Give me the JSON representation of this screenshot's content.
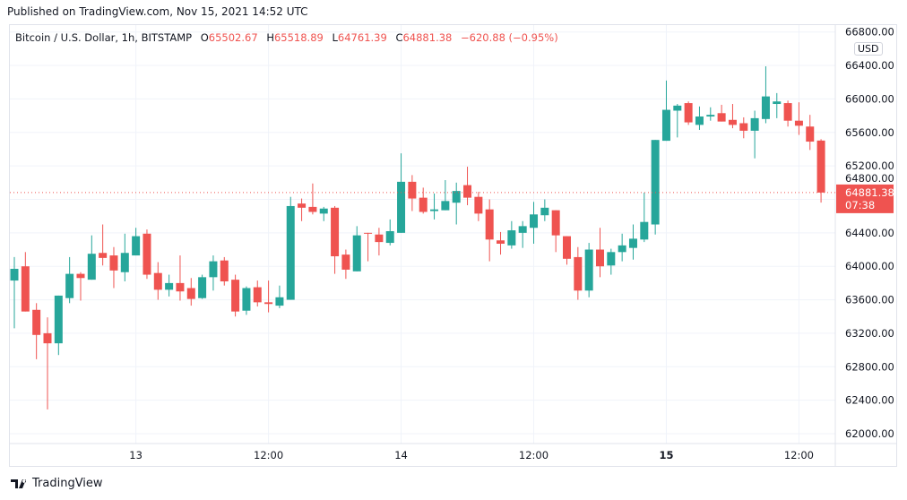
{
  "header": {
    "published": "Published on TradingView.com, Nov 15, 2021 14:52 UTC"
  },
  "legend": {
    "symbol": "Bitcoin / U.S. Dollar, 1h, BITSTAMP",
    "o_label": "O",
    "o": "65502.67",
    "h_label": "H",
    "h": "65518.89",
    "l_label": "L",
    "l": "64761.39",
    "c_label": "C",
    "c": "64881.38",
    "change": "−620.88 (−0.95%)"
  },
  "currency_badge": "USD",
  "last_price": {
    "price": "64881.38",
    "countdown": "07:38",
    "value": 64881.38
  },
  "footer": {
    "logo_text": "TradingView"
  },
  "colors": {
    "up": "#26a69a",
    "down": "#ef5350",
    "grid": "#f0f3fa",
    "text": "#131722"
  },
  "chart_data": {
    "type": "candlestick",
    "title": "Bitcoin / U.S. Dollar, 1h, BITSTAMP",
    "ylim": [
      61900,
      66850
    ],
    "grid": true,
    "y_ticks": [
      "62000.00",
      "62400.00",
      "62800.00",
      "63200.00",
      "63600.00",
      "64000.00",
      "64400.00",
      "64800.00",
      "65200.00",
      "65600.00",
      "66000.00",
      "66400.00",
      "66800.00"
    ],
    "x_ticks": [
      {
        "label": "13",
        "at": "11-13 00:00",
        "bold": false
      },
      {
        "label": "12:00",
        "at": "11-13 12:00",
        "bold": false
      },
      {
        "label": "14",
        "at": "11-14 00:00",
        "bold": false
      },
      {
        "label": "12:00",
        "at": "11-14 12:00",
        "bold": false
      },
      {
        "label": "15",
        "at": "11-15 00:00",
        "bold": true
      },
      {
        "label": "12:00",
        "at": "11-15 12:00",
        "bold": false
      }
    ],
    "candle_fields": [
      "time",
      "open",
      "high",
      "low",
      "close"
    ],
    "candles": [
      [
        "11-12 13:00",
        63830,
        64110,
        63260,
        63970
      ],
      [
        "11-12 14:00",
        64000,
        64170,
        63460,
        63460
      ],
      [
        "11-12 15:00",
        63480,
        63560,
        62890,
        63180
      ],
      [
        "11-12 16:00",
        63200,
        63390,
        62290,
        63080
      ],
      [
        "11-12 17:00",
        63080,
        63650,
        62940,
        63650
      ],
      [
        "11-12 18:00",
        63620,
        64110,
        63560,
        63910
      ],
      [
        "11-12 19:00",
        63910,
        63930,
        63590,
        63860
      ],
      [
        "11-12 20:00",
        63840,
        64370,
        63840,
        64150
      ],
      [
        "11-12 21:00",
        64160,
        64500,
        64010,
        64100
      ],
      [
        "11-12 22:00",
        64130,
        64230,
        63740,
        63950
      ],
      [
        "11-12 23:00",
        63930,
        64390,
        63820,
        64160
      ],
      [
        "11-13 00:00",
        64130,
        64460,
        64130,
        64360
      ],
      [
        "11-13 01:00",
        64390,
        64440,
        63850,
        63900
      ],
      [
        "11-13 02:00",
        63920,
        64050,
        63600,
        63720
      ],
      [
        "11-13 03:00",
        63720,
        63900,
        63640,
        63800
      ],
      [
        "11-13 04:00",
        63800,
        64130,
        63590,
        63700
      ],
      [
        "11-13 05:00",
        63740,
        63860,
        63530,
        63610
      ],
      [
        "11-13 06:00",
        63620,
        63900,
        63610,
        63870
      ],
      [
        "11-13 07:00",
        63870,
        64130,
        63710,
        64060
      ],
      [
        "11-13 08:00",
        64070,
        64110,
        63770,
        63820
      ],
      [
        "11-13 09:00",
        63840,
        63900,
        63400,
        63460
      ],
      [
        "11-13 10:00",
        63470,
        63760,
        63420,
        63740
      ],
      [
        "11-13 11:00",
        63750,
        63830,
        63520,
        63570
      ],
      [
        "11-13 12:00",
        63570,
        63830,
        63450,
        63550
      ],
      [
        "11-13 13:00",
        63530,
        63770,
        63500,
        63630
      ],
      [
        "11-13 14:00",
        63600,
        64830,
        63600,
        64720
      ],
      [
        "11-13 15:00",
        64750,
        64810,
        64540,
        64700
      ],
      [
        "11-13 16:00",
        64710,
        64990,
        64620,
        64650
      ],
      [
        "11-13 17:00",
        64630,
        64710,
        64540,
        64690
      ],
      [
        "11-13 18:00",
        64700,
        64720,
        63910,
        64120
      ],
      [
        "11-13 19:00",
        64140,
        64200,
        63850,
        63960
      ],
      [
        "11-13 20:00",
        63940,
        64480,
        63940,
        64370
      ],
      [
        "11-13 21:00",
        64400,
        64400,
        64060,
        64390
      ],
      [
        "11-13 22:00",
        64380,
        64460,
        64130,
        64290
      ],
      [
        "11-13 23:00",
        64280,
        64560,
        64250,
        64420
      ],
      [
        "11-14 00:00",
        64400,
        65350,
        64400,
        65010
      ],
      [
        "11-14 01:00",
        65010,
        65090,
        64660,
        64810
      ],
      [
        "11-14 02:00",
        64820,
        64940,
        64630,
        64650
      ],
      [
        "11-14 03:00",
        64660,
        64870,
        64560,
        64680
      ],
      [
        "11-14 04:00",
        64670,
        65030,
        64670,
        64780
      ],
      [
        "11-14 05:00",
        64760,
        65000,
        64500,
        64900
      ],
      [
        "11-14 06:00",
        64970,
        65190,
        64730,
        64820
      ],
      [
        "11-14 07:00",
        64830,
        64890,
        64540,
        64630
      ],
      [
        "11-14 08:00",
        64680,
        64800,
        64060,
        64320
      ],
      [
        "11-14 09:00",
        64310,
        64410,
        64140,
        64270
      ],
      [
        "11-14 10:00",
        64250,
        64540,
        64210,
        64430
      ],
      [
        "11-14 11:00",
        64400,
        64540,
        64220,
        64480
      ],
      [
        "11-14 12:00",
        64460,
        64770,
        64270,
        64620
      ],
      [
        "11-14 13:00",
        64610,
        64800,
        64540,
        64700
      ],
      [
        "11-14 14:00",
        64670,
        64670,
        64170,
        64370
      ],
      [
        "11-14 15:00",
        64360,
        64360,
        64020,
        64090
      ],
      [
        "11-14 16:00",
        64110,
        64230,
        63600,
        63710
      ],
      [
        "11-14 17:00",
        63710,
        64280,
        63630,
        64200
      ],
      [
        "11-14 18:00",
        64200,
        64460,
        63870,
        64000
      ],
      [
        "11-14 19:00",
        64010,
        64210,
        63900,
        64170
      ],
      [
        "11-14 20:00",
        64170,
        64390,
        64060,
        64250
      ],
      [
        "11-14 21:00",
        64220,
        64500,
        64080,
        64330
      ],
      [
        "11-14 22:00",
        64320,
        64880,
        64290,
        64530
      ],
      [
        "11-14 23:00",
        64500,
        65510,
        64380,
        65510
      ],
      [
        "11-15 00:00",
        65500,
        66220,
        65500,
        65870
      ],
      [
        "11-15 01:00",
        65860,
        65940,
        65540,
        65920
      ],
      [
        "11-15 02:00",
        65950,
        65970,
        65690,
        65720
      ],
      [
        "11-15 03:00",
        65690,
        65910,
        65630,
        65790
      ],
      [
        "11-15 04:00",
        65790,
        65900,
        65740,
        65810
      ],
      [
        "11-15 05:00",
        65830,
        65930,
        65730,
        65730
      ],
      [
        "11-15 06:00",
        65750,
        65940,
        65650,
        65690
      ],
      [
        "11-15 07:00",
        65710,
        65780,
        65530,
        65620
      ],
      [
        "11-15 08:00",
        65620,
        65860,
        65290,
        65770
      ],
      [
        "11-15 09:00",
        65760,
        66390,
        65710,
        66030
      ],
      [
        "11-15 10:00",
        65940,
        66070,
        65770,
        65970
      ],
      [
        "11-15 11:00",
        65950,
        65980,
        65670,
        65740
      ],
      [
        "11-15 12:00",
        65740,
        65960,
        65570,
        65680
      ],
      [
        "11-15 13:00",
        65670,
        65810,
        65390,
        65490
      ],
      [
        "11-15 14:00",
        65502.67,
        65518.89,
        64761.39,
        64881.38
      ]
    ]
  }
}
